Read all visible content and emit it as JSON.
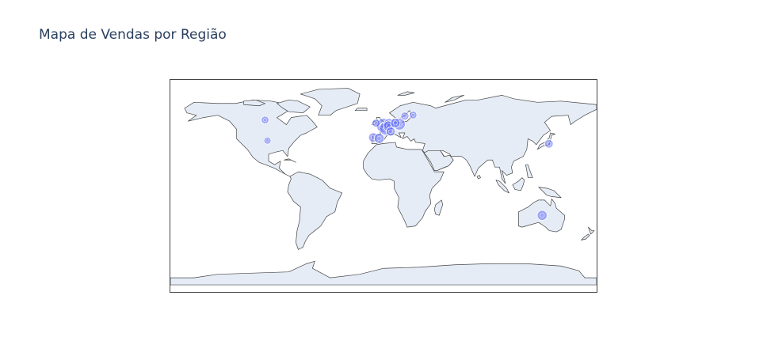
{
  "title": "Mapa de Vendas por Região",
  "colors": {
    "land": "#e5ecf6",
    "coast": "#444444",
    "marker": "#636efa",
    "title": "#2a3f5f"
  },
  "map": {
    "projection": "equirectangular",
    "lon_range": [
      -180,
      180
    ],
    "lat_range": [
      -90,
      90
    ]
  },
  "markers": [
    {
      "lon": -0.1,
      "lat": 51.5,
      "size": 1.0
    },
    {
      "lon": 2.3,
      "lat": 48.8,
      "size": 0.9
    },
    {
      "lon": 4.9,
      "lat": 52.4,
      "size": 0.7
    },
    {
      "lon": 13.4,
      "lat": 52.5,
      "size": 0.75
    },
    {
      "lon": -8.6,
      "lat": 41.1,
      "size": 0.5
    },
    {
      "lon": -3.7,
      "lat": 40.4,
      "size": 0.55
    },
    {
      "lon": 4.4,
      "lat": 50.8,
      "size": 0.6
    },
    {
      "lon": 10.0,
      "lat": 53.5,
      "size": 0.5
    },
    {
      "lon": 18.1,
      "lat": 59.3,
      "size": 0.35
    },
    {
      "lon": 25.0,
      "lat": 60.2,
      "size": 0.3
    },
    {
      "lon": 6.1,
      "lat": 46.2,
      "size": 0.45
    },
    {
      "lon": -6.3,
      "lat": 53.3,
      "size": 0.35
    },
    {
      "lon": -100.0,
      "lat": 56.0,
      "size": 0.3
    },
    {
      "lon": -98.0,
      "lat": 38.5,
      "size": 0.25
    },
    {
      "lon": 139.7,
      "lat": 35.7,
      "size": 0.4
    },
    {
      "lon": 134.0,
      "lat": -25.0,
      "size": 0.55
    }
  ]
}
